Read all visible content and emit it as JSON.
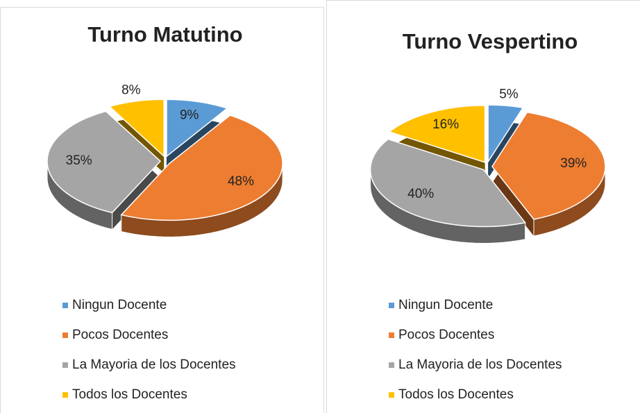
{
  "chart_data": [
    {
      "type": "pie",
      "title": "Turno Matutino",
      "categories": [
        "Ningun Docente",
        "Pocos Docentes",
        "La Mayoria de los Docentes",
        "Todos los Docentes"
      ],
      "values": [
        9,
        48,
        35,
        8
      ],
      "value_labels": [
        "9%",
        "48%",
        "35%",
        "8%"
      ],
      "colors": [
        "#5b9bd5",
        "#ed7d31",
        "#a5a5a5",
        "#ffc000"
      ]
    },
    {
      "type": "pie",
      "title": "Turno Vespertino",
      "categories": [
        "Ningun Docente",
        "Pocos Docentes",
        "La Mayoria de los Docentes",
        "Todos los Docentes"
      ],
      "values": [
        5,
        39,
        40,
        16
      ],
      "value_labels": [
        "5%",
        "39%",
        "40%",
        "16%"
      ],
      "colors": [
        "#5b9bd5",
        "#ed7d31",
        "#a5a5a5",
        "#ffc000"
      ]
    }
  ]
}
